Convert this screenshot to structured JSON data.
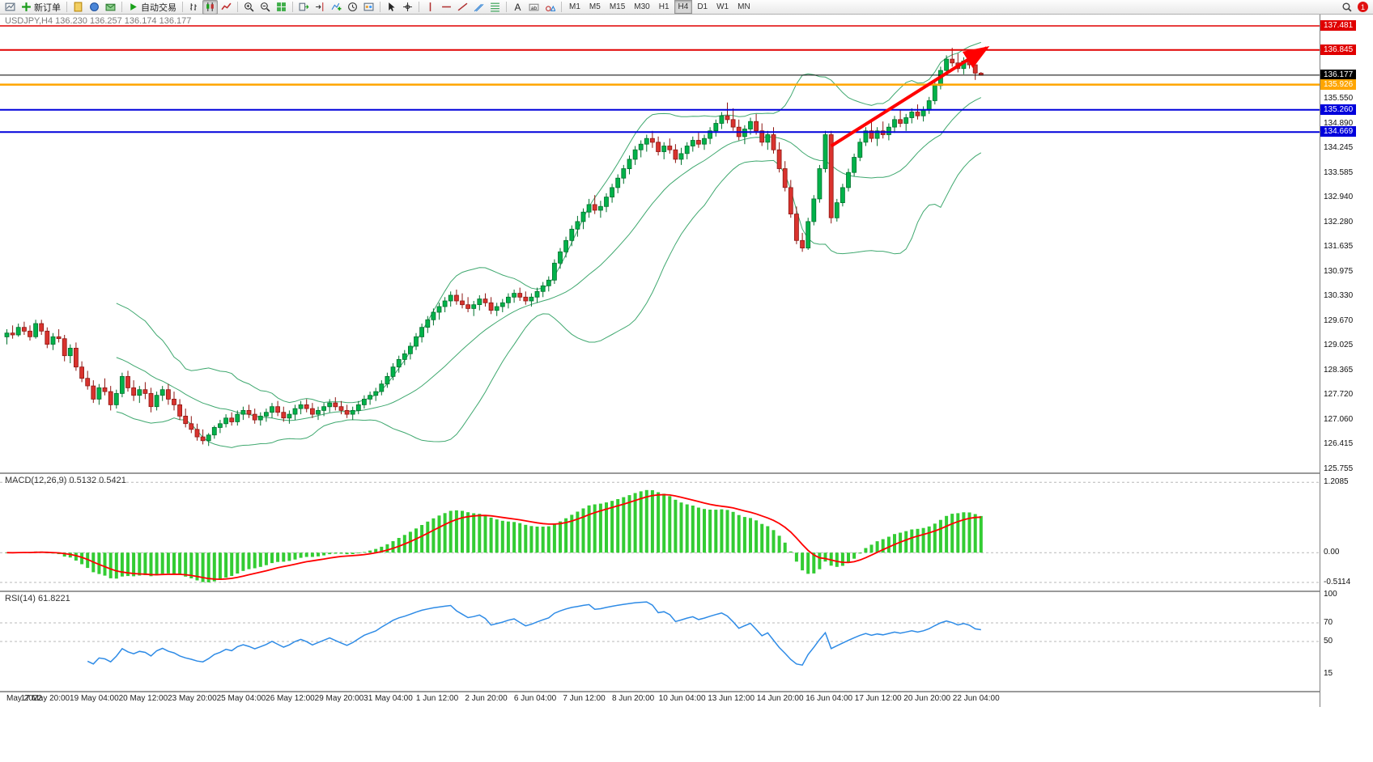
{
  "toolbar": {
    "items": [
      {
        "name": "charts-window-button",
        "icon": "chart-window"
      },
      {
        "name": "new-order-button",
        "icon": "plus-green",
        "label": "新订单"
      },
      {
        "sep": true
      },
      {
        "name": "metaeditor-button",
        "icon": "doc-yellow"
      },
      {
        "name": "market-watch-button",
        "icon": "globe-blue"
      },
      {
        "name": "data-window-button",
        "icon": "mail-green"
      },
      {
        "sep": true
      },
      {
        "name": "auto-trading-button",
        "icon": "play-green",
        "label": "自动交易"
      },
      {
        "sep": true
      },
      {
        "name": "bar-chart-button",
        "icon": "bars"
      },
      {
        "name": "candlestick-chart-button",
        "icon": "candles",
        "active": true
      },
      {
        "name": "line-chart-button",
        "icon": "linechart"
      },
      {
        "sep": true
      },
      {
        "name": "zoom-in-button",
        "icon": "zoom-in"
      },
      {
        "name": "zoom-out-button",
        "icon": "zoom-out"
      },
      {
        "name": "tile-windows-button",
        "icon": "grid-green"
      },
      {
        "sep": true
      },
      {
        "name": "auto-scroll-button",
        "icon": "autoscroll"
      },
      {
        "name": "chart-shift-button",
        "icon": "chart-shift"
      },
      {
        "name": "indicators-button",
        "icon": "indicator-add"
      },
      {
        "name": "periods-button",
        "icon": "clock"
      },
      {
        "name": "templates-button",
        "icon": "template"
      },
      {
        "sep": true
      },
      {
        "name": "cursor-button",
        "icon": "cursor"
      },
      {
        "name": "crosshair-button",
        "icon": "crosshair"
      },
      {
        "sep": true
      },
      {
        "name": "vertical-line-button",
        "icon": "vline"
      },
      {
        "name": "horizontal-line-button",
        "icon": "hline"
      },
      {
        "name": "trendline-button",
        "icon": "trendline"
      },
      {
        "name": "channel-button",
        "icon": "channel"
      },
      {
        "name": "fibonacci-button",
        "icon": "fibo"
      },
      {
        "sep": true
      },
      {
        "name": "text-button",
        "icon": "text"
      },
      {
        "name": "text-label-button",
        "icon": "label"
      },
      {
        "name": "arrows-button",
        "icon": "shapes"
      },
      {
        "sep": true
      }
    ],
    "timeframes": [
      "M1",
      "M5",
      "M15",
      "M30",
      "H1",
      "H4",
      "D1",
      "W1",
      "MN"
    ],
    "active_timeframe": "H4",
    "right": {
      "search_icon": "search",
      "notification_count": "1"
    }
  },
  "chart": {
    "symbol_title": "USDJPY,H4 136.230 136.257 136.174 136.177",
    "macd_label": "MACD(12,26,9) 0.5132 0.5421",
    "rsi_label": "RSI(14) 61.8221"
  },
  "chart_data": {
    "type": "candlestick",
    "symbol": "USDJPY",
    "timeframe": "H4",
    "ohlc_display": {
      "open": "136.230",
      "high": "136.257",
      "low": "136.174",
      "close": "136.177"
    },
    "price_range": {
      "max": 137.78,
      "min": 125.66
    },
    "price_axis_labels": [
      "135.550",
      "134.890",
      "134.245",
      "133.585",
      "132.940",
      "132.280",
      "131.635",
      "130.975",
      "130.330",
      "129.670",
      "129.025",
      "128.365",
      "127.720",
      "127.060",
      "126.415",
      "125.755"
    ],
    "hlines": [
      {
        "price": 137.481,
        "label": "137.481",
        "color": "#E00000",
        "width": 1.5
      },
      {
        "price": 136.845,
        "label": "136.845",
        "color": "#E00000",
        "width": 2
      },
      {
        "price": 136.177,
        "label": "136.177",
        "color": "#000000",
        "width": 1
      },
      {
        "price": 135.926,
        "label": "135.926",
        "color": "#FFA500",
        "width": 2.5
      },
      {
        "price": 135.26,
        "label": "135.260",
        "color": "#0000DC",
        "width": 2
      },
      {
        "price": 134.669,
        "label": "134.669",
        "color": "#0000DC",
        "width": 2
      }
    ],
    "bollinger": {
      "period": 20,
      "deviation": 2
    },
    "macd": {
      "params": "12,26,9",
      "current_values": [
        "0.5132",
        "0.5421"
      ],
      "range": [
        -0.65,
        1.35
      ],
      "scale_labels": [
        {
          "v": 1.2085,
          "label": "1.2085"
        },
        {
          "v": 0,
          "label": "0.00"
        },
        {
          "v": -0.5114,
          "label": "-0.5114"
        }
      ]
    },
    "rsi": {
      "period": 14,
      "current_value": "61.8221",
      "range": [
        0,
        100
      ],
      "levels": [
        70,
        50
      ],
      "scale_labels": [
        {
          "v": 100,
          "label": "100"
        },
        {
          "v": 70,
          "label": "70"
        },
        {
          "v": 50,
          "label": "50"
        },
        {
          "v": 15,
          "label": "15"
        }
      ]
    },
    "trend_arrow": {
      "from_candle": 143,
      "from_price": 134.3,
      "to_candle": 170,
      "to_price": 136.9
    },
    "colors": {
      "candle_up": "#00B24A",
      "candle_up_border": "#00712C",
      "candle_down": "#D9332E",
      "candle_down_border": "#8E1713",
      "bollinger": "#3FA86F",
      "macd_hist": "#33CC33",
      "macd_signal": "#FF0000",
      "rsi_line": "#2E8BE6",
      "trend_arrow": "#FF0000"
    },
    "time_labels": [
      "May 2022",
      "17 May 20:00",
      "19 May 04:00",
      "20 May 12:00",
      "23 May 20:00",
      "25 May 04:00",
      "26 May 12:00",
      "29 May 20:00",
      "31 May 04:00",
      "1 Jun 12:00",
      "2 Jun 20:00",
      "6 Jun 04:00",
      "7 Jun 12:00",
      "8 Jun 20:00",
      "10 Jun 04:00",
      "13 Jun 12:00",
      "14 Jun 20:00",
      "16 Jun 04:00",
      "17 Jun 12:00",
      "20 Jun 20:00",
      "22 Jun 04:00"
    ],
    "candles": [
      [
        129.25,
        129.45,
        129.05,
        129.35
      ],
      [
        129.35,
        129.55,
        129.2,
        129.3
      ],
      [
        129.3,
        129.6,
        129.25,
        129.5
      ],
      [
        129.5,
        129.65,
        129.3,
        129.4
      ],
      [
        129.4,
        129.55,
        129.15,
        129.25
      ],
      [
        129.25,
        129.7,
        129.2,
        129.6
      ],
      [
        129.6,
        129.7,
        129.3,
        129.4
      ],
      [
        129.4,
        129.5,
        128.95,
        129.05
      ],
      [
        129.05,
        129.35,
        128.9,
        129.25
      ],
      [
        129.25,
        129.45,
        129.1,
        129.2
      ],
      [
        129.2,
        129.3,
        128.6,
        128.75
      ],
      [
        128.75,
        129.05,
        128.55,
        128.95
      ],
      [
        128.95,
        129.1,
        128.35,
        128.45
      ],
      [
        128.45,
        128.6,
        128.05,
        128.15
      ],
      [
        128.15,
        128.35,
        127.85,
        127.95
      ],
      [
        127.95,
        128.1,
        127.5,
        127.6
      ],
      [
        127.6,
        128.0,
        127.45,
        127.9
      ],
      [
        127.9,
        128.15,
        127.7,
        127.8
      ],
      [
        127.8,
        127.95,
        127.3,
        127.45
      ],
      [
        127.45,
        127.85,
        127.35,
        127.75
      ],
      [
        127.75,
        128.3,
        127.65,
        128.2
      ],
      [
        128.2,
        128.35,
        127.8,
        127.9
      ],
      [
        127.9,
        128.1,
        127.55,
        127.7
      ],
      [
        127.7,
        127.95,
        127.5,
        127.85
      ],
      [
        127.85,
        128.05,
        127.6,
        127.75
      ],
      [
        127.75,
        127.9,
        127.25,
        127.4
      ],
      [
        127.4,
        127.8,
        127.3,
        127.7
      ],
      [
        127.7,
        127.95,
        127.55,
        127.85
      ],
      [
        127.85,
        128.0,
        127.45,
        127.6
      ],
      [
        127.6,
        127.8,
        127.3,
        127.45
      ],
      [
        127.45,
        127.6,
        127.05,
        127.15
      ],
      [
        127.15,
        127.35,
        126.85,
        126.95
      ],
      [
        126.95,
        127.15,
        126.7,
        126.8
      ],
      [
        126.8,
        126.95,
        126.5,
        126.6
      ],
      [
        126.6,
        126.8,
        126.4,
        126.5
      ],
      [
        126.5,
        126.7,
        126.36,
        126.65
      ],
      [
        126.65,
        126.9,
        126.55,
        126.85
      ],
      [
        126.85,
        127.05,
        126.7,
        126.95
      ],
      [
        126.95,
        127.2,
        126.85,
        127.1
      ],
      [
        127.1,
        127.25,
        126.9,
        127.0
      ],
      [
        127.0,
        127.3,
        126.9,
        127.2
      ],
      [
        127.2,
        127.4,
        127.05,
        127.3
      ],
      [
        127.3,
        127.45,
        127.1,
        127.2
      ],
      [
        127.2,
        127.35,
        126.95,
        127.05
      ],
      [
        127.05,
        127.25,
        126.9,
        127.15
      ],
      [
        127.15,
        127.35,
        127.0,
        127.25
      ],
      [
        127.25,
        127.5,
        127.1,
        127.4
      ],
      [
        127.4,
        127.55,
        127.15,
        127.25
      ],
      [
        127.25,
        127.4,
        127.0,
        127.1
      ],
      [
        127.1,
        127.3,
        126.95,
        127.2
      ],
      [
        127.2,
        127.45,
        127.05,
        127.35
      ],
      [
        127.35,
        127.55,
        127.2,
        127.45
      ],
      [
        127.45,
        127.6,
        127.25,
        127.35
      ],
      [
        127.35,
        127.5,
        127.1,
        127.2
      ],
      [
        127.2,
        127.4,
        127.05,
        127.3
      ],
      [
        127.3,
        127.5,
        127.15,
        127.4
      ],
      [
        127.4,
        127.6,
        127.25,
        127.5
      ],
      [
        127.5,
        127.65,
        127.3,
        127.4
      ],
      [
        127.4,
        127.55,
        127.2,
        127.3
      ],
      [
        127.3,
        127.45,
        127.1,
        127.2
      ],
      [
        127.2,
        127.4,
        127.05,
        127.3
      ],
      [
        127.3,
        127.55,
        127.2,
        127.45
      ],
      [
        127.45,
        127.7,
        127.35,
        127.6
      ],
      [
        127.6,
        127.8,
        127.45,
        127.7
      ],
      [
        127.7,
        127.9,
        127.55,
        127.8
      ],
      [
        127.8,
        128.1,
        127.7,
        128.0
      ],
      [
        128.0,
        128.3,
        127.9,
        128.2
      ],
      [
        128.2,
        128.55,
        128.1,
        128.45
      ],
      [
        128.45,
        128.75,
        128.3,
        128.65
      ],
      [
        128.65,
        128.9,
        128.5,
        128.8
      ],
      [
        128.8,
        129.1,
        128.65,
        129.0
      ],
      [
        129.0,
        129.35,
        128.9,
        129.25
      ],
      [
        129.25,
        129.6,
        129.1,
        129.5
      ],
      [
        129.5,
        129.8,
        129.35,
        129.7
      ],
      [
        129.7,
        130.0,
        129.55,
        129.9
      ],
      [
        129.9,
        130.15,
        129.7,
        130.05
      ],
      [
        130.05,
        130.3,
        129.9,
        130.2
      ],
      [
        130.2,
        130.45,
        130.05,
        130.35
      ],
      [
        130.35,
        130.5,
        130.1,
        130.2
      ],
      [
        130.2,
        130.4,
        130.0,
        130.1
      ],
      [
        130.1,
        130.3,
        129.9,
        130.0
      ],
      [
        130.0,
        130.2,
        129.8,
        130.1
      ],
      [
        130.1,
        130.35,
        129.95,
        130.25
      ],
      [
        130.25,
        130.4,
        130.05,
        130.15
      ],
      [
        130.15,
        130.3,
        129.85,
        129.95
      ],
      [
        129.95,
        130.15,
        129.8,
        130.05
      ],
      [
        130.05,
        130.25,
        129.9,
        130.15
      ],
      [
        130.15,
        130.4,
        130.0,
        130.3
      ],
      [
        130.3,
        130.5,
        130.15,
        130.4
      ],
      [
        130.4,
        130.55,
        130.2,
        130.3
      ],
      [
        130.3,
        130.45,
        130.1,
        130.2
      ],
      [
        130.2,
        130.4,
        130.05,
        130.3
      ],
      [
        130.3,
        130.55,
        130.15,
        130.45
      ],
      [
        130.45,
        130.7,
        130.3,
        130.6
      ],
      [
        130.6,
        130.85,
        130.45,
        130.75
      ],
      [
        130.75,
        131.3,
        130.65,
        131.2
      ],
      [
        131.2,
        131.6,
        131.05,
        131.5
      ],
      [
        131.5,
        131.9,
        131.35,
        131.8
      ],
      [
        131.8,
        132.2,
        131.65,
        132.1
      ],
      [
        132.1,
        132.45,
        131.9,
        132.3
      ],
      [
        132.3,
        132.65,
        132.1,
        132.55
      ],
      [
        132.55,
        132.9,
        132.4,
        132.75
      ],
      [
        132.75,
        133.0,
        132.5,
        132.6
      ],
      [
        132.6,
        132.85,
        132.4,
        132.7
      ],
      [
        132.7,
        133.05,
        132.55,
        132.95
      ],
      [
        132.95,
        133.3,
        132.8,
        133.2
      ],
      [
        133.2,
        133.55,
        133.05,
        133.45
      ],
      [
        133.45,
        133.8,
        133.3,
        133.7
      ],
      [
        133.7,
        134.05,
        133.55,
        133.95
      ],
      [
        133.95,
        134.3,
        133.8,
        134.2
      ],
      [
        134.2,
        134.45,
        134.0,
        134.35
      ],
      [
        134.35,
        134.6,
        134.15,
        134.5
      ],
      [
        134.5,
        134.7,
        134.25,
        134.4
      ],
      [
        134.4,
        134.55,
        134.05,
        134.15
      ],
      [
        134.15,
        134.4,
        133.95,
        134.3
      ],
      [
        134.3,
        134.5,
        134.1,
        134.2
      ],
      [
        134.2,
        134.35,
        133.85,
        133.95
      ],
      [
        133.95,
        134.25,
        133.8,
        134.1
      ],
      [
        134.1,
        134.4,
        133.95,
        134.3
      ],
      [
        134.3,
        134.55,
        134.15,
        134.45
      ],
      [
        134.45,
        134.65,
        134.25,
        134.35
      ],
      [
        134.35,
        134.6,
        134.2,
        134.5
      ],
      [
        134.5,
        134.8,
        134.35,
        134.7
      ],
      [
        134.7,
        135.0,
        134.55,
        134.9
      ],
      [
        134.9,
        135.2,
        134.75,
        135.1
      ],
      [
        135.1,
        135.45,
        134.9,
        135.0
      ],
      [
        135.0,
        135.3,
        134.7,
        134.8
      ],
      [
        134.8,
        135.0,
        134.45,
        134.55
      ],
      [
        134.55,
        134.85,
        134.35,
        134.75
      ],
      [
        134.75,
        135.05,
        134.6,
        134.95
      ],
      [
        134.95,
        135.15,
        134.6,
        134.7
      ],
      [
        134.7,
        134.9,
        134.3,
        134.4
      ],
      [
        134.4,
        134.7,
        134.2,
        134.6
      ],
      [
        134.6,
        134.8,
        134.1,
        134.2
      ],
      [
        134.2,
        134.4,
        133.6,
        133.7
      ],
      [
        133.7,
        133.9,
        133.1,
        133.2
      ],
      [
        133.2,
        133.4,
        132.4,
        132.5
      ],
      [
        132.5,
        132.7,
        131.7,
        131.8
      ],
      [
        131.8,
        132.0,
        131.5,
        131.6
      ],
      [
        131.6,
        132.4,
        131.55,
        132.3
      ],
      [
        132.3,
        133.0,
        132.2,
        132.9
      ],
      [
        132.9,
        133.8,
        132.8,
        133.7
      ],
      [
        133.7,
        134.7,
        133.6,
        134.6
      ],
      [
        134.6,
        134.7,
        132.25,
        132.4
      ],
      [
        132.4,
        132.9,
        132.3,
        132.8
      ],
      [
        132.8,
        133.3,
        132.7,
        133.2
      ],
      [
        133.2,
        133.7,
        133.1,
        133.6
      ],
      [
        133.6,
        134.1,
        133.5,
        134.0
      ],
      [
        134.0,
        134.5,
        133.9,
        134.4
      ],
      [
        134.4,
        134.8,
        134.3,
        134.7
      ],
      [
        134.7,
        135.0,
        134.4,
        134.5
      ],
      [
        134.5,
        134.8,
        134.3,
        134.7
      ],
      [
        134.7,
        134.95,
        134.5,
        134.6
      ],
      [
        134.6,
        134.9,
        134.45,
        134.8
      ],
      [
        134.8,
        135.1,
        134.65,
        135.0
      ],
      [
        135.0,
        135.25,
        134.8,
        134.9
      ],
      [
        134.9,
        135.15,
        134.7,
        135.05
      ],
      [
        135.05,
        135.3,
        134.9,
        135.2
      ],
      [
        135.2,
        135.4,
        135.0,
        135.1
      ],
      [
        135.1,
        135.35,
        134.95,
        135.25
      ],
      [
        135.25,
        135.6,
        135.15,
        135.5
      ],
      [
        135.5,
        136.0,
        135.4,
        135.9
      ],
      [
        135.9,
        136.4,
        135.8,
        136.3
      ],
      [
        136.3,
        136.7,
        136.2,
        136.6
      ],
      [
        136.6,
        136.9,
        136.4,
        136.5
      ],
      [
        136.5,
        136.75,
        136.25,
        136.35
      ],
      [
        136.35,
        136.65,
        136.2,
        136.55
      ],
      [
        136.55,
        136.8,
        136.35,
        136.45
      ],
      [
        136.45,
        136.6,
        136.05,
        136.23
      ],
      [
        136.23,
        136.257,
        136.174,
        136.177
      ]
    ]
  }
}
